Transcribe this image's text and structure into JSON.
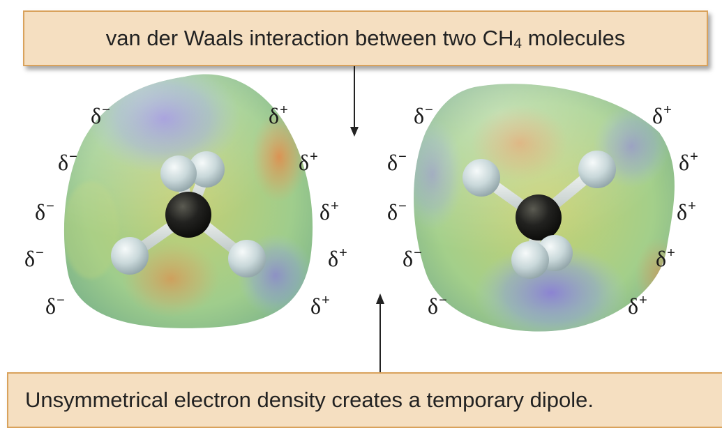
{
  "top_caption": {
    "text_before": "van der Waals interaction between two CH",
    "subscript": "4",
    "text_after": " molecules"
  },
  "bottom_caption": {
    "text": "Unsymmetrical electron density creates a temporary dipole."
  },
  "charge_symbol": "δ",
  "left_molecule": {
    "left_charges": [
      "−",
      "−",
      "−",
      "−",
      "−"
    ],
    "right_charges": [
      "+",
      "+",
      "+",
      "+",
      "+"
    ]
  },
  "right_molecule": {
    "left_charges": [
      "−",
      "−",
      "−",
      "−",
      "−"
    ],
    "right_charges": [
      "+",
      "+",
      "+",
      "+",
      "+"
    ]
  }
}
